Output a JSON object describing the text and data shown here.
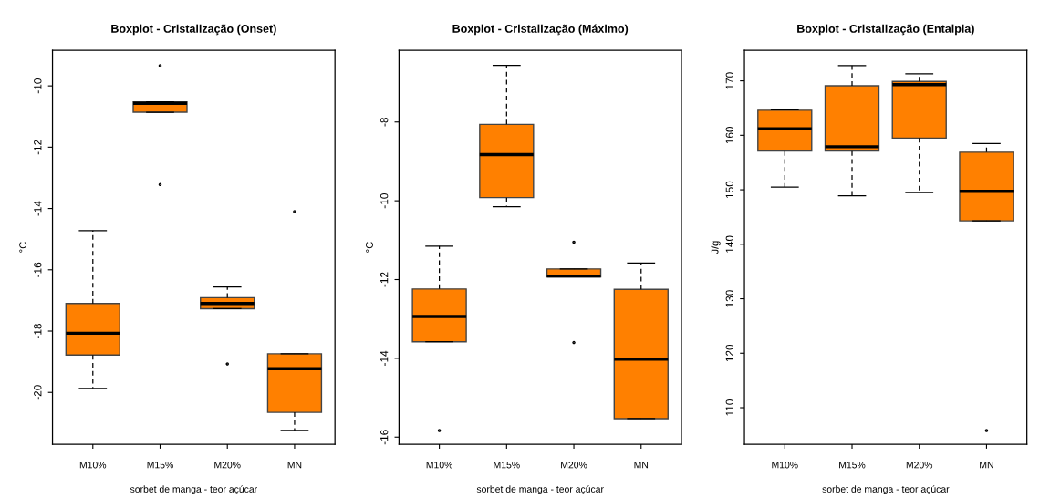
{
  "chart_data": [
    {
      "type": "box",
      "title": "Boxplot - Cristalização (Onset)",
      "xlabel": "sorbet de manga - teor açúcar",
      "ylabel": "°C",
      "categories": [
        "M10%",
        "M15%",
        "M20%",
        "MN"
      ],
      "color": "#ff8000",
      "ylim": [
        -21.69,
        -8.84
      ],
      "yticks": [
        -20,
        -18,
        -16,
        -14,
        -12,
        -10
      ],
      "grid": false,
      "legend": false,
      "boxes": [
        {
          "low": -19.87,
          "q1": -18.78,
          "median": -18.07,
          "q3": -17.1,
          "high": -14.72
        },
        {
          "low": -10.86,
          "q1": -10.86,
          "median": -10.57,
          "q3": -10.52,
          "high": -10.52,
          "outliers": [
            -9.34,
            -13.22
          ]
        },
        {
          "low": -17.27,
          "q1": -17.27,
          "median": -17.1,
          "q3": -16.91,
          "high": -16.56,
          "outliers": [
            -19.07
          ]
        },
        {
          "low": -21.24,
          "q1": -20.65,
          "median": -19.23,
          "q3": -18.74,
          "high": -18.74,
          "outliers": [
            -14.1
          ]
        }
      ]
    },
    {
      "type": "box",
      "title": "Boxplot - Cristalização (Máximo)",
      "xlabel": "sorbet de manga - teor açúcar",
      "ylabel": "°C",
      "categories": [
        "M10%",
        "M15%",
        "M20%",
        "MN"
      ],
      "color": "#ff8000",
      "ylim": [
        -16.18,
        -6.18
      ],
      "yticks": [
        -16,
        -14,
        -12,
        -10,
        -8
      ],
      "grid": false,
      "legend": false,
      "boxes": [
        {
          "low": -13.58,
          "q1": -13.58,
          "median": -12.94,
          "q3": -12.24,
          "high": -11.15,
          "outliers": [
            -15.83
          ]
        },
        {
          "low": -10.15,
          "q1": -9.92,
          "median": -8.83,
          "q3": -8.06,
          "high": -6.56
        },
        {
          "low": -11.93,
          "q1": -11.93,
          "median": -11.91,
          "q3": -11.73,
          "high": -11.73,
          "outliers": [
            -11.05,
            -13.6
          ]
        },
        {
          "low": -15.53,
          "q1": -15.53,
          "median": -14.02,
          "q3": -12.25,
          "high": -11.58
        }
      ]
    },
    {
      "type": "box",
      "title": "Boxplot - Cristalização (Entalpia)",
      "xlabel": "sorbet de manga - teor açúcar",
      "ylabel": "J/g",
      "categories": [
        "M10%",
        "M15%",
        "M20%",
        "MN"
      ],
      "color": "#ff8000",
      "ylim": [
        103.3,
        175.6
      ],
      "yticks": [
        110,
        120,
        130,
        140,
        150,
        160,
        170
      ],
      "grid": false,
      "legend": false,
      "boxes": [
        {
          "low": 150.5,
          "q1": 157.1,
          "median": 161.2,
          "q3": 164.6,
          "high": 164.7
        },
        {
          "low": 148.9,
          "q1": 157.1,
          "median": 157.9,
          "q3": 169.1,
          "high": 172.8
        },
        {
          "low": 149.5,
          "q1": 159.5,
          "median": 169.3,
          "q3": 169.9,
          "high": 171.3
        },
        {
          "low": 144.3,
          "q1": 144.3,
          "median": 149.7,
          "q3": 156.9,
          "high": 158.5,
          "outliers": [
            105.8
          ]
        }
      ]
    }
  ]
}
